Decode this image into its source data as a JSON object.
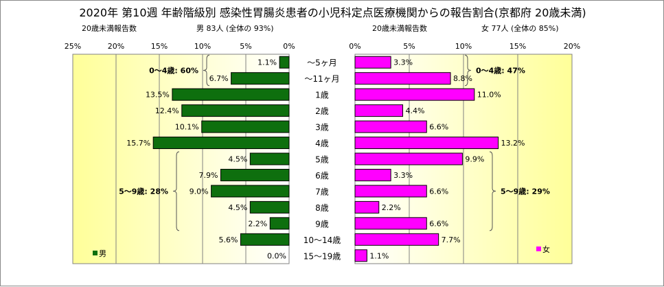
{
  "title": "2020年 第10週 年齢階級別 感染性胃腸炎患者の小児科定点医療機関からの報告割合(京都府 20歳未満)",
  "colors": {
    "male": "#0e6f0e",
    "female": "#ff00ff",
    "plot_gradient_outer": "#ffff99",
    "plot_gradient_inner": "#ffffff",
    "grid": "#808080"
  },
  "categories": [
    "～5ヶ月",
    "～11ヶ月",
    "1歳",
    "2歳",
    "3歳",
    "4歳",
    "5歳",
    "6歳",
    "7歳",
    "8歳",
    "9歳",
    "10～14歳",
    "15～19歳"
  ],
  "chart_data": {
    "type": "bar",
    "title": "2020年 第10週 年齢階級別 感染性胃腸炎患者の小児科定点医療機関からの報告割合(京都府 20歳未満)",
    "categories": [
      "～5ヶ月",
      "～11ヶ月",
      "1歳",
      "2歳",
      "3歳",
      "4歳",
      "5歳",
      "6歳",
      "7歳",
      "8歳",
      "9歳",
      "10～14歳",
      "15～19歳"
    ],
    "series": [
      {
        "name": "男",
        "values": [
          1.1,
          6.7,
          13.5,
          12.4,
          10.1,
          15.7,
          4.5,
          7.9,
          9.0,
          4.5,
          2.2,
          5.6,
          0.0
        ],
        "value_labels": [
          "1.1%",
          "6.7%",
          "13.5%",
          "12.4%",
          "10.1%",
          "15.7%",
          "4.5%",
          "7.9%",
          "9.0%",
          "4.5%",
          "2.2%",
          "5.6%",
          "0.0%"
        ]
      },
      {
        "name": "女",
        "values": [
          3.3,
          8.8,
          11.0,
          4.4,
          6.6,
          13.2,
          9.9,
          3.3,
          6.6,
          2.2,
          6.6,
          7.7,
          1.1
        ],
        "value_labels": [
          "3.3%",
          "8.8%",
          "11.0%",
          "4.4%",
          "6.6%",
          "13.2%",
          "9.9%",
          "3.3%",
          "6.6%",
          "2.2%",
          "6.6%",
          "7.7%",
          "1.1%"
        ]
      }
    ],
    "male_panel": {
      "subtitle_left": "20歳未満報告数",
      "subtitle_right": "男  83人 (全体の 93%)",
      "xlim": [
        0,
        25
      ],
      "ticks": [
        "25%",
        "20%",
        "15%",
        "10%",
        "5%",
        "0%"
      ],
      "tick_values": [
        25,
        20,
        15,
        10,
        5,
        0
      ],
      "legend": "男",
      "annotations": [
        {
          "label": "0～4歳: 60%",
          "from_category": 0,
          "to_category": 1
        },
        {
          "label": "5～9歳: 28%",
          "from_category": 6,
          "to_category": 10
        }
      ]
    },
    "female_panel": {
      "subtitle_left": "20歳未満報告数",
      "subtitle_right": "女  77人 (全体の 85%)",
      "xlim": [
        0,
        20
      ],
      "ticks": [
        "0%",
        "5%",
        "10%",
        "15%",
        "20%"
      ],
      "tick_values": [
        0,
        5,
        10,
        15,
        20
      ],
      "legend": "女",
      "annotations": [
        {
          "label": "0～4歳: 47%",
          "from_category": 0,
          "to_category": 1
        },
        {
          "label": "5～9歳: 29%",
          "from_category": 6,
          "to_category": 10
        }
      ]
    },
    "grid": true,
    "legend_position": "bottom-left (male), bottom-right (female)"
  }
}
